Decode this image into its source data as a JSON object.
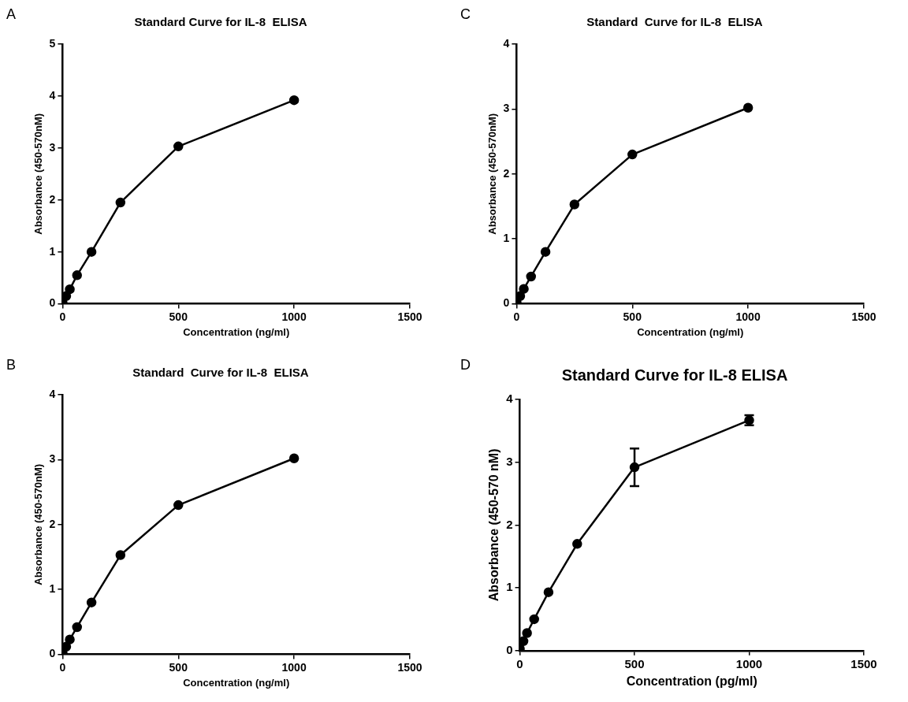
{
  "chart_data": [
    {
      "type": "line",
      "title": "Standard Curve for IL-8  ELISA",
      "xlabel": "Concentration (ng/ml)",
      "ylabel": "Absorbance (450-570nM)",
      "annotations": [
        "A"
      ],
      "x": [
        0,
        15.6,
        31.25,
        62.5,
        125,
        250,
        500,
        1000
      ],
      "series": [
        {
          "color": "#000000",
          "values": [
            0.02,
            0.15,
            0.28,
            0.55,
            1.0,
            1.95,
            3.03,
            3.92
          ]
        }
      ],
      "xlim": [
        0,
        1500
      ],
      "xticks": [
        0,
        500,
        1000,
        1500
      ],
      "ylim": [
        0,
        5
      ],
      "yticks": [
        0,
        1,
        2,
        3,
        4,
        5
      ],
      "grid": false,
      "legend": false,
      "marker": "circle",
      "line_style": "solid"
    },
    {
      "type": "line",
      "title": "Standard  Curve for IL-8  ELISA",
      "xlabel": "Concentration (ng/ml)",
      "ylabel": "Absorbance (450-570nM)",
      "annotations": [
        "C"
      ],
      "x": [
        0,
        15.6,
        31.25,
        62.5,
        125,
        250,
        500,
        1000
      ],
      "series": [
        {
          "color": "#000000",
          "values": [
            0.02,
            0.12,
            0.23,
            0.42,
            0.8,
            1.53,
            2.3,
            3.02
          ]
        }
      ],
      "xlim": [
        0,
        1500
      ],
      "xticks": [
        0,
        500,
        1000,
        1500
      ],
      "ylim": [
        0,
        4
      ],
      "yticks": [
        0,
        1,
        2,
        3,
        4
      ],
      "grid": false,
      "legend": false,
      "marker": "circle",
      "line_style": "solid"
    },
    {
      "type": "line",
      "title": "Standard  Curve for IL-8  ELISA",
      "xlabel": "Concentration (ng/ml)",
      "ylabel": "Absorbance (450-570nM)",
      "annotations": [
        "B"
      ],
      "x": [
        0,
        15.6,
        31.25,
        62.5,
        125,
        250,
        500,
        1000
      ],
      "series": [
        {
          "color": "#000000",
          "values": [
            0.02,
            0.12,
            0.23,
            0.42,
            0.8,
            1.53,
            2.3,
            3.02
          ]
        }
      ],
      "xlim": [
        0,
        1500
      ],
      "xticks": [
        0,
        500,
        1000,
        1500
      ],
      "ylim": [
        0,
        4
      ],
      "yticks": [
        0,
        1,
        2,
        3,
        4
      ],
      "grid": false,
      "legend": false,
      "marker": "circle",
      "line_style": "solid"
    },
    {
      "type": "line",
      "title": "Standard Curve for IL-8 ELISA",
      "xlabel": "Concentration (pg/ml)",
      "ylabel": "Absorbance (450-570 nM)",
      "annotations": [
        "D"
      ],
      "x": [
        0,
        15.6,
        31.25,
        62.5,
        125,
        250,
        500,
        1000
      ],
      "series": [
        {
          "color": "#000000",
          "values": [
            0.03,
            0.15,
            0.28,
            0.5,
            0.93,
            1.7,
            2.92,
            3.67
          ],
          "errors": [
            null,
            null,
            null,
            null,
            null,
            null,
            0.3,
            0.08
          ]
        }
      ],
      "xlim": [
        0,
        1500
      ],
      "xticks": [
        0,
        500,
        1000,
        1500
      ],
      "ylim": [
        0,
        4
      ],
      "yticks": [
        0,
        1,
        2,
        3,
        4
      ],
      "grid": false,
      "legend": false,
      "marker": "circle",
      "line_style": "solid"
    }
  ]
}
